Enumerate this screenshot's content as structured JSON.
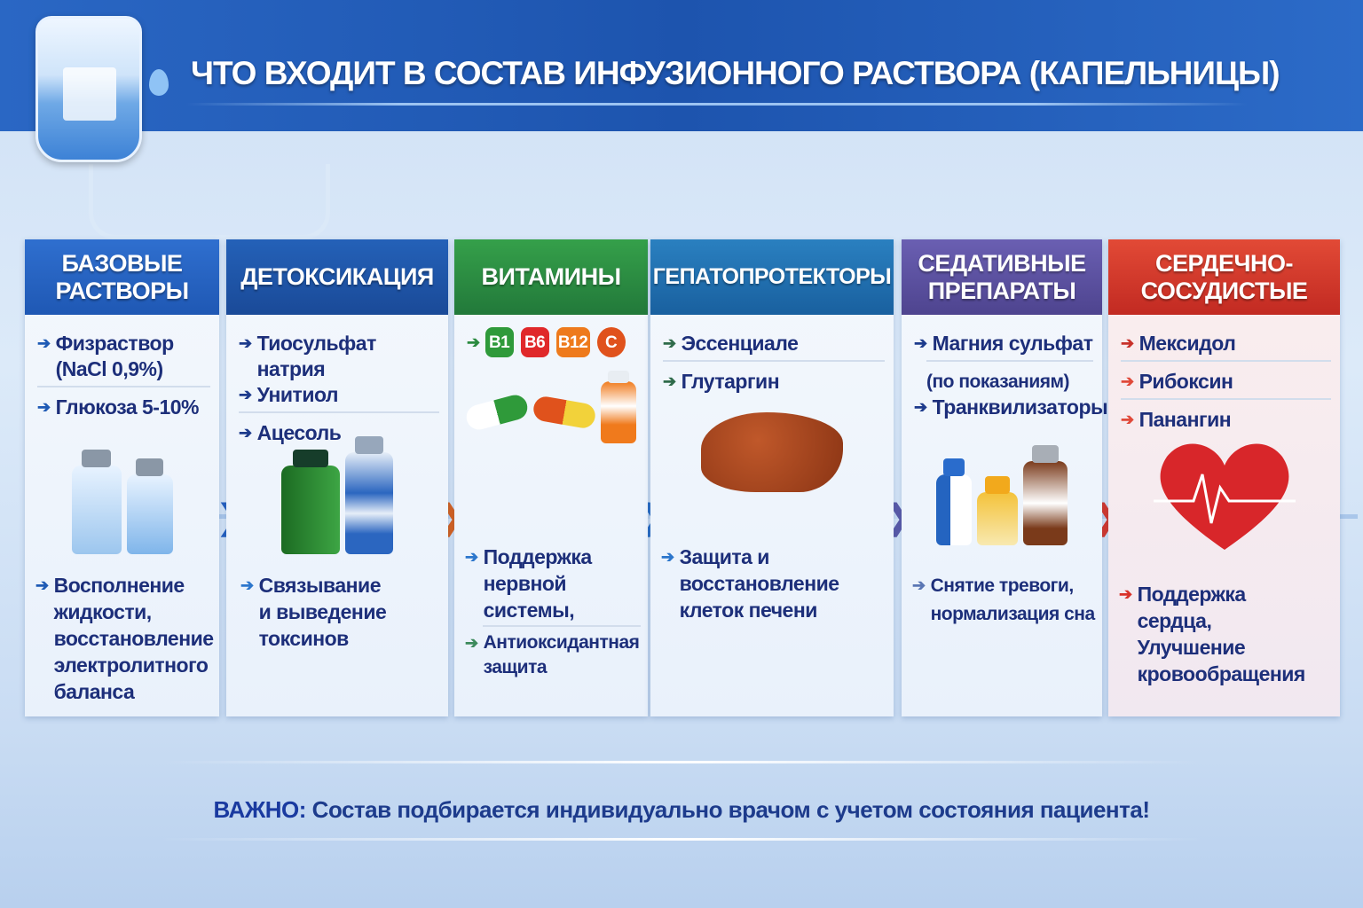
{
  "title": "ЧТО ВХОДИТ В СОСТАВ ИНФУЗИОННОГО РАСТВОРА (КАПЕЛЬНИЦЫ)",
  "columns": [
    {
      "header": "БАЗОВЫЕ РАСТВОРЫ",
      "color": "#2260bf",
      "items": [
        "Физраствор (NaCl 0,9%)",
        "Глюкоза 5-10%"
      ],
      "effects": [
        "Восполнение жидкости, восстановление электролитного баланса"
      ],
      "illustration": "iv-bottles-icon"
    },
    {
      "header": "ДЕТОКСИКАЦИЯ",
      "color": "#1c4f9e",
      "items": [
        "Тиосульфат натрия",
        "Унитиол",
        "Ацесоль"
      ],
      "effects": [
        "Связывание и выведение токсинов"
      ],
      "illustration": "detox-bottles-icon"
    },
    {
      "header": "ВИТАМИНЫ",
      "color": "#2b8a3f",
      "vitamins": [
        "B1",
        "B6",
        "B12",
        "C"
      ],
      "vitamin_colors": [
        "#2f9a3a",
        "#e0282a",
        "#ee7a1c",
        "#e0521c"
      ],
      "effects": [
        "Поддержка нервной системы,",
        "Антиоксидантная защита"
      ],
      "illustration": "capsules-icon"
    },
    {
      "header": "ГЕПАТОПРОТЕКТОРЫ",
      "color": "#1f70b0",
      "items": [
        "Эссенциале",
        "Глутаргин"
      ],
      "effects": [
        "Защита и восстановление клеток печени"
      ],
      "illustration": "liver-icon"
    },
    {
      "header": "СЕДАТИВНЫЕ ПРЕПАРАТЫ",
      "color": "#5a4fa0",
      "items": [
        "Магния сульфат"
      ],
      "note": "(по показаниям)",
      "items2": [
        "Транквилизаторы"
      ],
      "effects": [
        "Снятие тревоги, нормализация сна"
      ],
      "illustration": "pill-bottles-icon"
    },
    {
      "header": "СЕРДЕЧНО-СОСУДИСТЫЕ",
      "color": "#d2382a",
      "items": [
        "Мексидол",
        "Рибоксин",
        "Панангин"
      ],
      "effects": [
        "Поддержка сердца, Улучшение кровообращения"
      ],
      "illustration": "heart-icon"
    }
  ],
  "footer": {
    "label": "ВАЖНО:",
    "text": " Состав подбирается индивидуально врачом с учетом состояния пациента!"
  }
}
